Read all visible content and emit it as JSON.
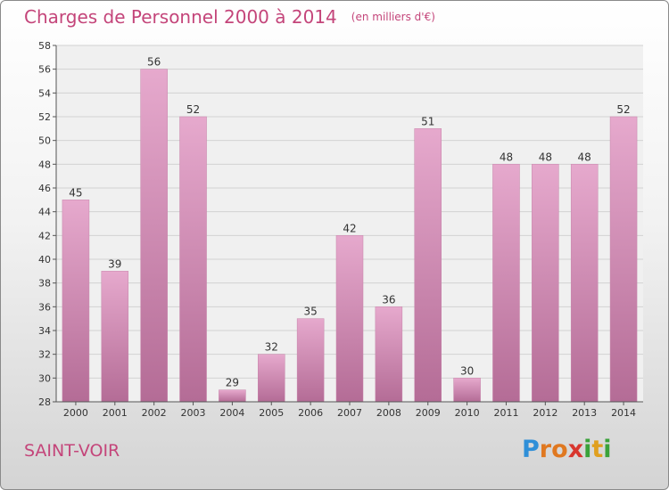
{
  "title": "Charges de Personnel 2000 à 2014",
  "unit": "(en milliers d'€)",
  "commune": "SAINT-VOIR",
  "logo": {
    "letters": [
      {
        "ch": "P",
        "color": "#2f8fd8"
      },
      {
        "ch": "r",
        "color": "#e07820"
      },
      {
        "ch": "o",
        "color": "#e07820"
      },
      {
        "ch": "x",
        "color": "#d8362e"
      },
      {
        "ch": "i",
        "color": "#3aa23a"
      },
      {
        "ch": "t",
        "color": "#e0a020"
      },
      {
        "ch": "i",
        "color": "#3aa23a"
      }
    ]
  },
  "chart_data": {
    "type": "bar",
    "title": "Charges de Personnel 2000 à 2014",
    "subtitle": "(en milliers d'€)",
    "xlabel": "",
    "ylabel": "",
    "categories": [
      "2000",
      "2001",
      "2002",
      "2003",
      "2004",
      "2005",
      "2006",
      "2007",
      "2008",
      "2009",
      "2010",
      "2011",
      "2012",
      "2013",
      "2014"
    ],
    "values": [
      45,
      39,
      56,
      52,
      29,
      32,
      35,
      42,
      36,
      51,
      30,
      48,
      48,
      48,
      52
    ],
    "ylim": [
      28,
      58
    ],
    "yticks": [
      28,
      30,
      32,
      34,
      36,
      38,
      40,
      42,
      44,
      46,
      48,
      50,
      52,
      54,
      56,
      58
    ],
    "grid": true,
    "bar_color": "#d98bb8"
  }
}
